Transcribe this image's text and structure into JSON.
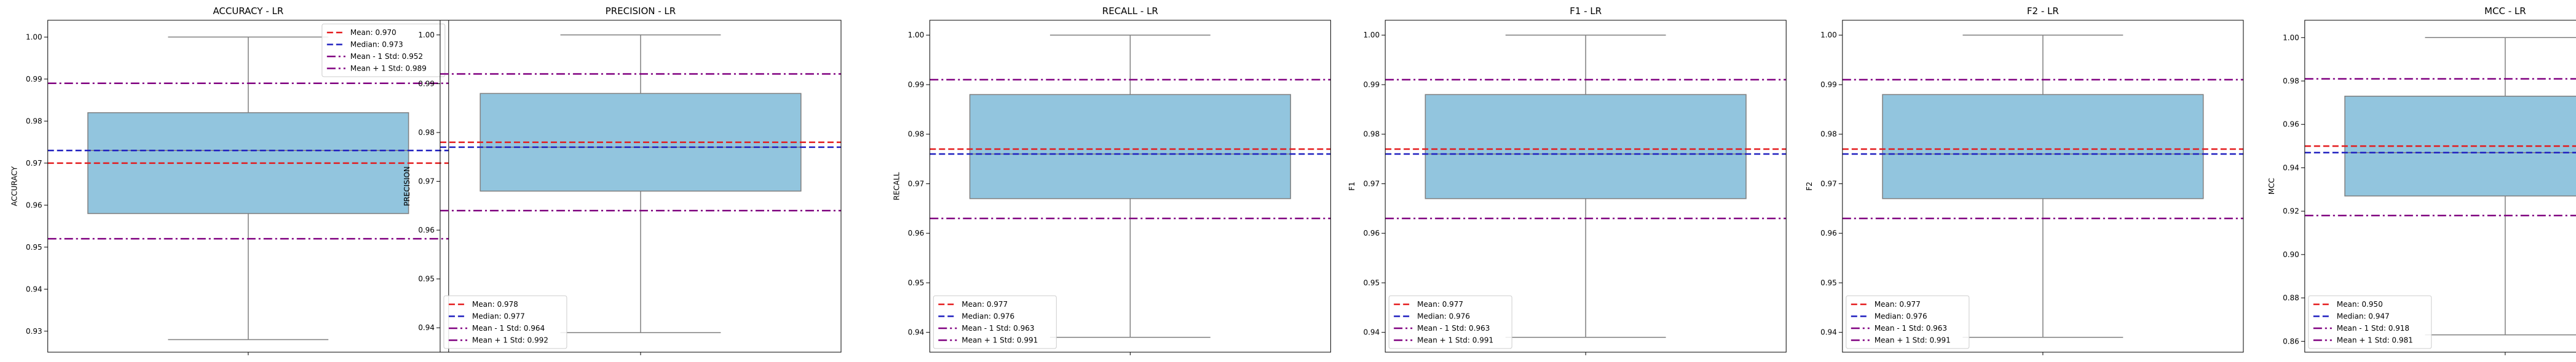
{
  "chart_data": [
    {
      "type": "box",
      "title": "ACCURACY - LR",
      "ylabel": "ACCURACY",
      "ylim": [
        0.925,
        1.004
      ],
      "yticks": [
        0.93,
        0.94,
        0.95,
        0.96,
        0.97,
        0.98,
        0.99,
        1.0
      ],
      "box": {
        "whisker_low": 0.928,
        "q1": 0.958,
        "median": 0.973,
        "q3": 0.982,
        "whisker_high": 1.0
      },
      "lines": {
        "mean": 0.97,
        "median": 0.973,
        "mean_minus_std": 0.952,
        "mean_plus_std": 0.989
      },
      "legend_position": "top-right",
      "legend": [
        "Mean: 0.970",
        "Median: 0.973",
        "Mean - 1 Std: 0.952",
        "Mean + 1 Std: 0.989"
      ]
    },
    {
      "type": "box",
      "title": "PRECISION - LR",
      "ylabel": "PRECISION",
      "ylim": [
        0.935,
        1.003
      ],
      "yticks": [
        0.94,
        0.95,
        0.96,
        0.97,
        0.98,
        0.99,
        1.0
      ],
      "box": {
        "whisker_low": 0.939,
        "q1": 0.968,
        "median": 0.977,
        "q3": 0.988,
        "whisker_high": 1.0
      },
      "lines": {
        "mean": 0.978,
        "median": 0.977,
        "mean_minus_std": 0.964,
        "mean_plus_std": 0.992
      },
      "legend_position": "bottom-left",
      "legend": [
        "Mean: 0.978",
        "Median: 0.977",
        "Mean - 1 Std: 0.964",
        "Mean + 1 Std: 0.992"
      ]
    },
    {
      "type": "box",
      "title": "RECALL - LR",
      "ylabel": "RECALL",
      "ylim": [
        0.936,
        1.003
      ],
      "yticks": [
        0.94,
        0.95,
        0.96,
        0.97,
        0.98,
        0.99,
        1.0
      ],
      "box": {
        "whisker_low": 0.939,
        "q1": 0.967,
        "median": 0.976,
        "q3": 0.988,
        "whisker_high": 1.0
      },
      "lines": {
        "mean": 0.977,
        "median": 0.976,
        "mean_minus_std": 0.963,
        "mean_plus_std": 0.991
      },
      "legend_position": "bottom-left",
      "legend": [
        "Mean: 0.977",
        "Median: 0.976",
        "Mean - 1 Std: 0.963",
        "Mean + 1 Std: 0.991"
      ]
    },
    {
      "type": "box",
      "title": "F1 - LR",
      "ylabel": "F1",
      "ylim": [
        0.936,
        1.003
      ],
      "yticks": [
        0.94,
        0.95,
        0.96,
        0.97,
        0.98,
        0.99,
        1.0
      ],
      "box": {
        "whisker_low": 0.939,
        "q1": 0.967,
        "median": 0.976,
        "q3": 0.988,
        "whisker_high": 1.0
      },
      "lines": {
        "mean": 0.977,
        "median": 0.976,
        "mean_minus_std": 0.963,
        "mean_plus_std": 0.991
      },
      "legend_position": "bottom-left",
      "legend": [
        "Mean: 0.977",
        "Median: 0.976",
        "Mean - 1 Std: 0.963",
        "Mean + 1 Std: 0.991"
      ]
    },
    {
      "type": "box",
      "title": "F2 - LR",
      "ylabel": "F2",
      "ylim": [
        0.936,
        1.003
      ],
      "yticks": [
        0.94,
        0.95,
        0.96,
        0.97,
        0.98,
        0.99,
        1.0
      ],
      "box": {
        "whisker_low": 0.939,
        "q1": 0.967,
        "median": 0.976,
        "q3": 0.988,
        "whisker_high": 1.0
      },
      "lines": {
        "mean": 0.977,
        "median": 0.976,
        "mean_minus_std": 0.963,
        "mean_plus_std": 0.991
      },
      "legend_position": "bottom-left",
      "legend": [
        "Mean: 0.977",
        "Median: 0.976",
        "Mean - 1 Std: 0.963",
        "Mean + 1 Std: 0.991"
      ]
    },
    {
      "type": "box",
      "title": "MCC - LR",
      "ylabel": "MCC",
      "ylim": [
        0.855,
        1.008
      ],
      "yticks": [
        0.86,
        0.88,
        0.9,
        0.92,
        0.94,
        0.96,
        0.98,
        1.0
      ],
      "box": {
        "whisker_low": 0.863,
        "q1": 0.927,
        "median": 0.947,
        "q3": 0.973,
        "whisker_high": 1.0
      },
      "lines": {
        "mean": 0.95,
        "median": 0.947,
        "mean_minus_std": 0.918,
        "mean_plus_std": 0.981
      },
      "legend_position": "bottom-left",
      "legend": [
        "Mean: 0.950",
        "Median: 0.947",
        "Mean - 1 Std: 0.918",
        "Mean + 1 Std: 0.981"
      ]
    }
  ],
  "colors": {
    "box_fill": "#92c5de",
    "box_edge": "#7f7f7f",
    "mean_line": "#e41a1c",
    "median_line": "#1f1fbf",
    "std_line": "#800080"
  }
}
